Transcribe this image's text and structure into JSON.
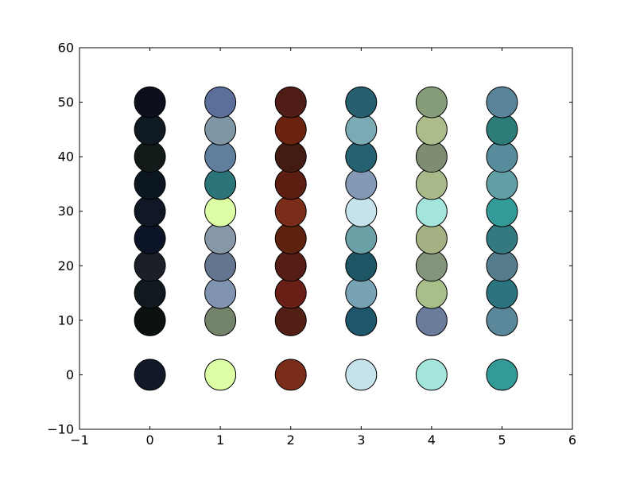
{
  "chart_data": {
    "type": "scatter",
    "title": "",
    "xlabel": "",
    "ylabel": "",
    "xlim": [
      -1,
      6
    ],
    "ylim": [
      -10,
      60
    ],
    "grid": false,
    "x_ticks": [
      -1,
      0,
      1,
      2,
      3,
      4,
      5,
      6
    ],
    "y_ticks": [
      -10,
      0,
      10,
      20,
      30,
      40,
      50,
      60
    ],
    "x_tick_labels": [
      "−1",
      "0",
      "1",
      "2",
      "3",
      "4",
      "5",
      "6"
    ],
    "y_tick_labels": [
      "−10",
      "0",
      "10",
      "20",
      "30",
      "40",
      "50",
      "60"
    ],
    "series": [
      {
        "x": 0,
        "points": [
          {
            "y": 0,
            "color": "#111827"
          },
          {
            "y": 10,
            "color": "#0b1210"
          },
          {
            "y": 15,
            "color": "#0f191e"
          },
          {
            "y": 20,
            "color": "#1a1f28"
          },
          {
            "y": 25,
            "color": "#0c1527"
          },
          {
            "y": 30,
            "color": "#101826"
          },
          {
            "y": 35,
            "color": "#0c1620"
          },
          {
            "y": 40,
            "color": "#121a1a"
          },
          {
            "y": 45,
            "color": "#101a22"
          },
          {
            "y": 50,
            "color": "#0b101c"
          }
        ]
      },
      {
        "x": 1,
        "points": [
          {
            "y": 0,
            "color": "#dcffa6"
          },
          {
            "y": 10,
            "color": "#74846a"
          },
          {
            "y": 15,
            "color": "#8093b0"
          },
          {
            "y": 20,
            "color": "#63758f"
          },
          {
            "y": 25,
            "color": "#8798a9"
          },
          {
            "y": 30,
            "color": "#dcffa6"
          },
          {
            "y": 35,
            "color": "#2b7478"
          },
          {
            "y": 40,
            "color": "#607e9e"
          },
          {
            "y": 45,
            "color": "#7f96a5"
          },
          {
            "y": 50,
            "color": "#5c6e9a"
          }
        ]
      },
      {
        "x": 2,
        "points": [
          {
            "y": 0,
            "color": "#7a2e19"
          },
          {
            "y": 10,
            "color": "#521f14"
          },
          {
            "y": 15,
            "color": "#6a1f16"
          },
          {
            "y": 20,
            "color": "#561c16"
          },
          {
            "y": 25,
            "color": "#5e230f"
          },
          {
            "y": 30,
            "color": "#7a2e19"
          },
          {
            "y": 35,
            "color": "#5c1e10"
          },
          {
            "y": 40,
            "color": "#431b12"
          },
          {
            "y": 45,
            "color": "#6b220f"
          },
          {
            "y": 50,
            "color": "#501c16"
          }
        ]
      },
      {
        "x": 3,
        "points": [
          {
            "y": 0,
            "color": "#c6e2ea"
          },
          {
            "y": 10,
            "color": "#1e566b"
          },
          {
            "y": 15,
            "color": "#77a3b4"
          },
          {
            "y": 20,
            "color": "#1d5564"
          },
          {
            "y": 25,
            "color": "#6ba1a6"
          },
          {
            "y": 30,
            "color": "#c6e2ea"
          },
          {
            "y": 35,
            "color": "#8499b6"
          },
          {
            "y": 40,
            "color": "#256171"
          },
          {
            "y": 45,
            "color": "#7aaab4"
          },
          {
            "y": 50,
            "color": "#265f6e"
          }
        ]
      },
      {
        "x": 4,
        "points": [
          {
            "y": 0,
            "color": "#a3e5db"
          },
          {
            "y": 10,
            "color": "#6b7b9c"
          },
          {
            "y": 15,
            "color": "#a9bf8a"
          },
          {
            "y": 20,
            "color": "#83947a"
          },
          {
            "y": 25,
            "color": "#a3b183"
          },
          {
            "y": 30,
            "color": "#a3e5db"
          },
          {
            "y": 35,
            "color": "#a8ba89"
          },
          {
            "y": 40,
            "color": "#7e8d71"
          },
          {
            "y": 45,
            "color": "#acbc8b"
          },
          {
            "y": 50,
            "color": "#879d7a"
          }
        ]
      },
      {
        "x": 5,
        "points": [
          {
            "y": 0,
            "color": "#339a97"
          },
          {
            "y": 10,
            "color": "#5a8799"
          },
          {
            "y": 15,
            "color": "#2a737f"
          },
          {
            "y": 20,
            "color": "#567d8b"
          },
          {
            "y": 25,
            "color": "#337a80"
          },
          {
            "y": 30,
            "color": "#339a97"
          },
          {
            "y": 35,
            "color": "#629ea5"
          },
          {
            "y": 40,
            "color": "#568c9b"
          },
          {
            "y": 45,
            "color": "#2c7d7a"
          },
          {
            "y": 50,
            "color": "#5a8499"
          }
        ]
      }
    ]
  }
}
